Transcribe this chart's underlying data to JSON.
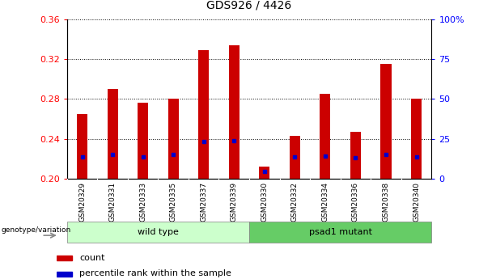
{
  "title": "GDS926 / 4426",
  "samples": [
    "GSM20329",
    "GSM20331",
    "GSM20333",
    "GSM20335",
    "GSM20337",
    "GSM20339",
    "GSM20330",
    "GSM20332",
    "GSM20334",
    "GSM20336",
    "GSM20338",
    "GSM20340"
  ],
  "groups": [
    {
      "label": "wild type",
      "n": 6,
      "color": "#ccffcc"
    },
    {
      "label": "psad1 mutant",
      "n": 6,
      "color": "#66cc66"
    }
  ],
  "count_values": [
    0.265,
    0.29,
    0.276,
    0.28,
    0.329,
    0.334,
    0.212,
    0.243,
    0.285,
    0.247,
    0.315,
    0.28
  ],
  "percentile_values": [
    0.222,
    0.224,
    0.222,
    0.224,
    0.237,
    0.238,
    0.207,
    0.222,
    0.223,
    0.221,
    0.224,
    0.222
  ],
  "ylim_left": [
    0.2,
    0.36
  ],
  "ylim_right": [
    0,
    100
  ],
  "yticks_left": [
    0.2,
    0.24,
    0.28,
    0.32,
    0.36
  ],
  "yticks_right": [
    0,
    25,
    50,
    75,
    100
  ],
  "ytick_labels_right": [
    "0",
    "25",
    "50",
    "75",
    "100%"
  ],
  "bar_color": "#cc0000",
  "dot_color": "#0000cc",
  "background_plot": "#ffffff",
  "xtick_bg": "#d0d0d0",
  "legend_count": "count",
  "legend_percentile": "percentile rank within the sample",
  "genotype_label": "genotype/variation",
  "bar_bottom": 0.2,
  "bar_width": 0.35,
  "title_fontsize": 10,
  "tick_fontsize": 8,
  "label_fontsize": 7
}
